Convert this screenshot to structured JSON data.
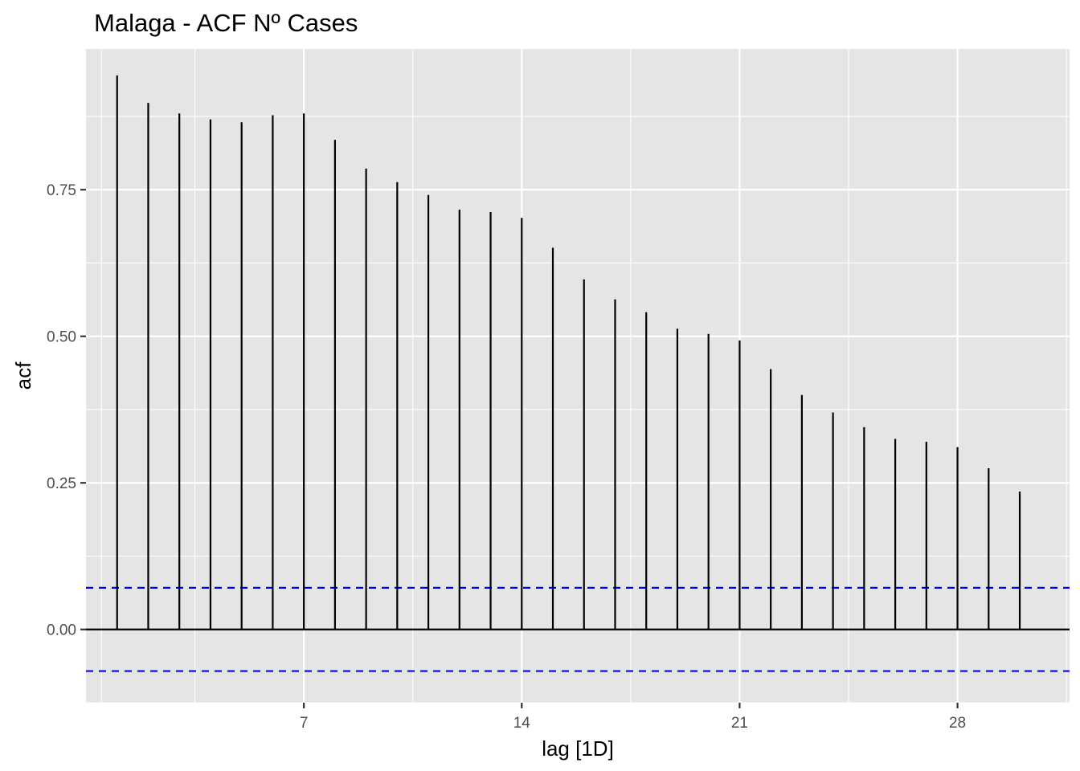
{
  "chart_data": {
    "type": "bar",
    "title": "Malaga - ACF Nº Cases",
    "xlabel": "lag [1D]",
    "ylabel": "acf",
    "x": [
      1,
      2,
      3,
      4,
      5,
      6,
      7,
      8,
      9,
      10,
      11,
      12,
      13,
      14,
      15,
      16,
      17,
      18,
      19,
      20,
      21,
      22,
      23,
      24,
      25,
      26,
      27,
      28,
      29,
      30
    ],
    "values": [
      0.945,
      0.898,
      0.88,
      0.87,
      0.865,
      0.877,
      0.88,
      0.835,
      0.786,
      0.763,
      0.741,
      0.716,
      0.712,
      0.702,
      0.651,
      0.597,
      0.563,
      0.541,
      0.513,
      0.504,
      0.493,
      0.444,
      0.4,
      0.37,
      0.345,
      0.325,
      0.32,
      0.311,
      0.275,
      0.235
    ],
    "confidence_bound": 0.071,
    "xlim": [
      0.0,
      31.6
    ],
    "ylim": [
      -0.125,
      0.99
    ],
    "x_ticks": [
      {
        "value": 7,
        "label": "7"
      },
      {
        "value": 14,
        "label": "14"
      },
      {
        "value": 21,
        "label": "21"
      },
      {
        "value": 28,
        "label": "28"
      }
    ],
    "y_ticks": [
      {
        "value": 0.0,
        "label": "0.00"
      },
      {
        "value": 0.25,
        "label": "0.25"
      },
      {
        "value": 0.5,
        "label": "0.50"
      },
      {
        "value": 0.75,
        "label": "0.75"
      }
    ],
    "grid": true,
    "colors": {
      "panel": "#e5e5e5",
      "grid": "#ffffff",
      "bars": "#000000",
      "bounds": "#0000ff",
      "axis_text": "#4d4d4d"
    }
  }
}
